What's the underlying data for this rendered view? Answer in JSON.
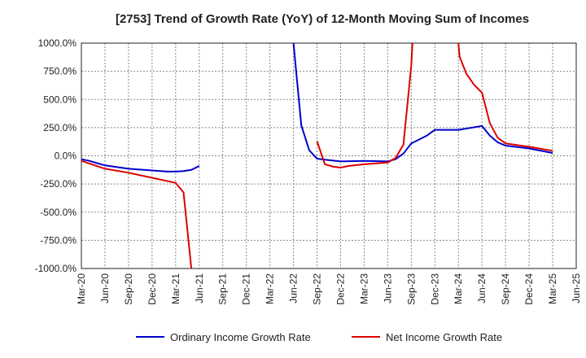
{
  "chart_data": {
    "type": "line",
    "title": "[2753]  Trend of Growth Rate (YoY) of 12-Month Moving Sum of Incomes",
    "xlabel": "",
    "ylabel": "",
    "ylim": [
      -1000,
      1000
    ],
    "y_ticks": [
      "1000.0%",
      "750.0%",
      "500.0%",
      "250.0%",
      "0.0%",
      "-250.0%",
      "-500.0%",
      "-750.0%",
      "-1000.0%"
    ],
    "y_tick_values": [
      1000,
      750,
      500,
      250,
      0,
      -250,
      -500,
      -750,
      -1000
    ],
    "x_ticks": [
      "Mar-20",
      "Jun-20",
      "Sep-20",
      "Dec-20",
      "Mar-21",
      "Jun-21",
      "Sep-21",
      "Dec-21",
      "Mar-22",
      "Jun-22",
      "Sep-22",
      "Dec-22",
      "Mar-23",
      "Jun-23",
      "Sep-23",
      "Dec-23",
      "Mar-24",
      "Jun-24",
      "Sep-24",
      "Dec-24",
      "Mar-25",
      "Jun-25"
    ],
    "grid": true,
    "legend_position": "bottom",
    "series": [
      {
        "name": "Ordinary Income Growth Rate",
        "color": "#0000cc",
        "points": [
          [
            "Mar-20",
            -30
          ],
          [
            "Apr-20",
            -45
          ],
          [
            "May-20",
            -65
          ],
          [
            "Jun-20",
            -85
          ],
          [
            "Sep-20",
            -115
          ],
          [
            "Dec-20",
            -130
          ],
          [
            "Feb-21",
            -140
          ],
          [
            "Mar-21",
            -140
          ],
          [
            "Apr-21",
            -135
          ],
          [
            "May-21",
            -125
          ],
          [
            "Jun-21",
            -90
          ],
          null,
          [
            "Jun-22",
            1000
          ],
          [
            "Jul-22",
            270
          ],
          [
            "Aug-22",
            50
          ],
          [
            "Sep-22",
            -25
          ],
          [
            "Oct-22",
            -35
          ],
          [
            "Dec-22",
            -50
          ],
          [
            "Mar-23",
            -45
          ],
          [
            "Jun-23",
            -50
          ],
          [
            "Jul-23",
            -30
          ],
          [
            "Aug-23",
            20
          ],
          [
            "Sep-23",
            110
          ],
          [
            "Nov-23",
            180
          ],
          [
            "Dec-23",
            230
          ],
          [
            "Mar-24",
            230
          ],
          [
            "Jun-24",
            265
          ],
          [
            "Jul-24",
            180
          ],
          [
            "Aug-24",
            120
          ],
          [
            "Sep-24",
            90
          ],
          [
            "Dec-24",
            65
          ],
          [
            "Mar-25",
            25
          ]
        ]
      },
      {
        "name": "Net Income Growth Rate",
        "color": "#dd0000",
        "points": [
          [
            "Mar-20",
            -45
          ],
          [
            "Jun-20",
            -115
          ],
          [
            "Sep-20",
            -150
          ],
          [
            "Dec-20",
            -195
          ],
          [
            "Feb-21",
            -225
          ],
          [
            "Mar-21",
            -240
          ],
          [
            "Apr-21",
            -325
          ],
          [
            "May-21",
            -1000
          ],
          null,
          [
            "Sep-22",
            130
          ],
          [
            "Oct-22",
            -75
          ],
          [
            "Nov-22",
            -95
          ],
          [
            "Dec-22",
            -105
          ],
          [
            "Jan-23",
            -90
          ],
          [
            "Mar-23",
            -75
          ],
          [
            "Jun-23",
            -60
          ],
          [
            "Jul-23",
            -20
          ],
          [
            "Aug-23",
            100
          ],
          [
            "Sep-23",
            800
          ],
          [
            "Sep-23+",
            1000
          ],
          null,
          [
            "Mar-24",
            1000
          ],
          [
            "Mar-24+",
            880
          ],
          [
            "Apr-24",
            730
          ],
          [
            "May-24",
            630
          ],
          [
            "Jun-24",
            560
          ],
          [
            "Jul-24",
            290
          ],
          [
            "Aug-24",
            160
          ],
          [
            "Sep-24",
            110
          ],
          [
            "Dec-24",
            80
          ],
          [
            "Mar-25",
            45
          ]
        ]
      }
    ]
  }
}
